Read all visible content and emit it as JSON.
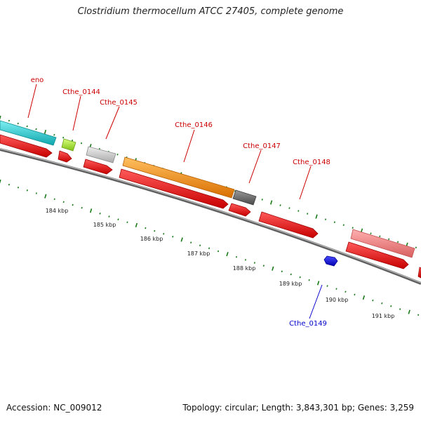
{
  "title": "Clostridium thermocellum ATCC 27405, complete genome",
  "accession": "Accession: NC_009012",
  "summary": "Topology: circular; Length: 3,843,301 bp; Genes: 3,259",
  "colors": {
    "cds": "#ff0000",
    "gene_label": "#cc0000",
    "reverse_label": "#0000cc",
    "backbone": "#808080",
    "tick": "#1a7a1a"
  },
  "genes": [
    {
      "name": "eno",
      "color": "#19c3c9"
    },
    {
      "name": "Cthe_0144",
      "color": "#a6e62e"
    },
    {
      "name": "Cthe_0145",
      "color": "#c8c8c8"
    },
    {
      "name": "Cthe_0146",
      "color": "#ff8c00"
    },
    {
      "name": "Cthe_0147",
      "color": "#6e6e6e"
    },
    {
      "name": "Cthe_0148",
      "color": "#f08080"
    },
    {
      "name": "Cthe_0149",
      "color": "#0000ff"
    }
  ],
  "scale_labels": [
    "184 kbp",
    "185 kbp",
    "186 kbp",
    "187 kbp",
    "188 kbp",
    "189 kbp",
    "190 kbp",
    "191 kbp"
  ]
}
